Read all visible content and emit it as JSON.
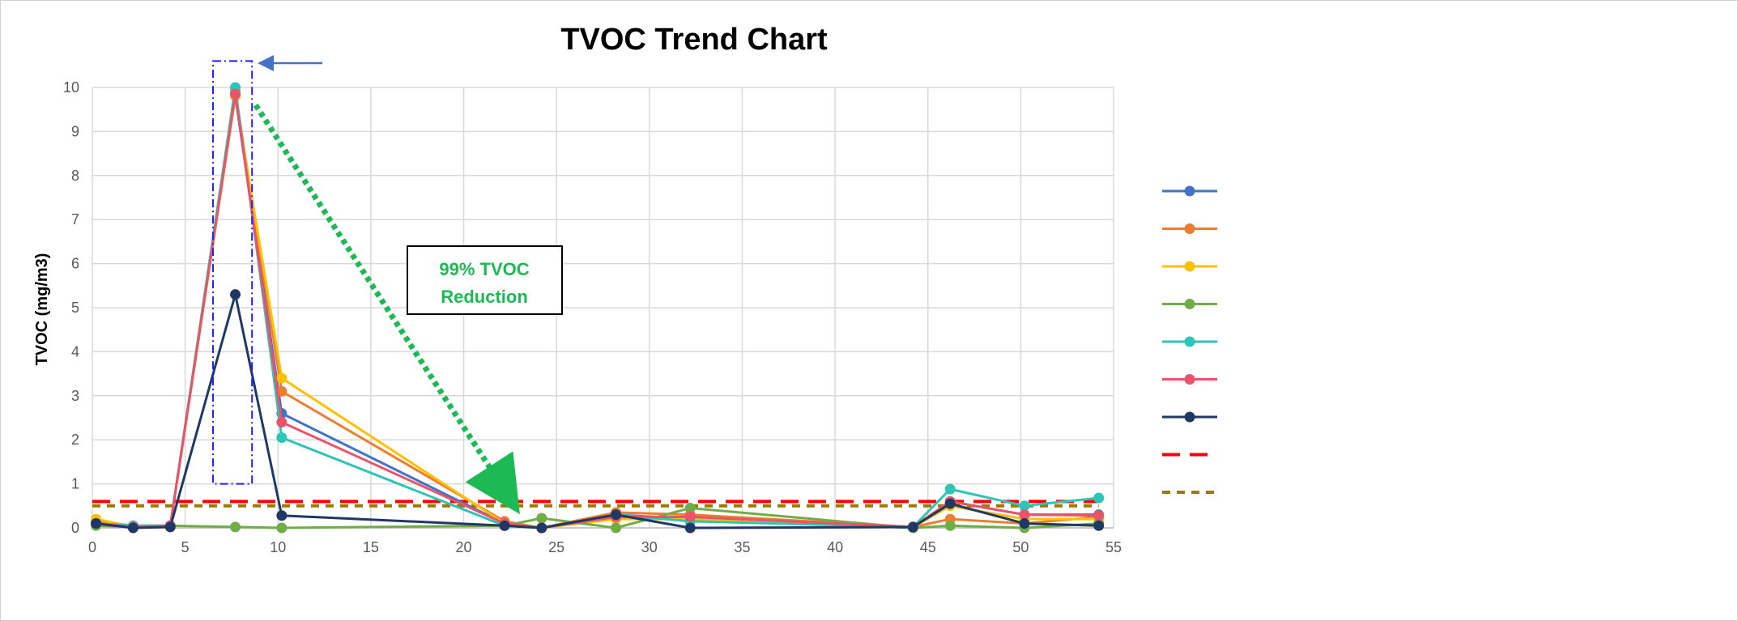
{
  "chart_data": {
    "type": "line",
    "title": "TVOC Trend Chart",
    "ylabel": "TVOC (mg/m3)",
    "xlabel": "",
    "xlim": [
      0,
      55
    ],
    "ylim": [
      0,
      10
    ],
    "xticks": [
      0,
      5,
      10,
      15,
      20,
      25,
      30,
      35,
      40,
      45,
      50,
      55
    ],
    "yticks": [
      0,
      1,
      2,
      3,
      4,
      5,
      6,
      7,
      8,
      9,
      10
    ],
    "grid": true,
    "legend_position": "right",
    "x": [
      0.2,
      2.2,
      4.2,
      7.7,
      10.2,
      22.2,
      24.2,
      28.2,
      32.2,
      44.2,
      46.2,
      50.2,
      54.2
    ],
    "series": [
      {
        "color": "#4472c4",
        "marker": "circle",
        "dash": "solid",
        "values": [
          0.15,
          0.05,
          0.05,
          9.8,
          2.6,
          0.1,
          0.0,
          0.3,
          0.2,
          0.0,
          0.6,
          0.3,
          0.3
        ]
      },
      {
        "color": "#ed7d31",
        "marker": "circle",
        "dash": "solid",
        "values": [
          0.15,
          0.02,
          0.05,
          9.9,
          3.1,
          0.15,
          0.0,
          0.35,
          0.3,
          0.02,
          0.2,
          0.1,
          0.25
        ]
      },
      {
        "color": "#ffc000",
        "marker": "circle",
        "dash": "solid",
        "values": [
          0.2,
          0.03,
          0.05,
          9.8,
          3.4,
          0.1,
          0.0,
          0.2,
          0.2,
          0.02,
          0.5,
          0.2,
          0.2
        ]
      },
      {
        "color": "#70ad47",
        "marker": "circle",
        "dash": "solid",
        "values": [
          0.05,
          0.02,
          0.05,
          0.02,
          0.0,
          0.05,
          0.22,
          0.0,
          0.45,
          0.0,
          0.05,
          0.0,
          0.1
        ]
      },
      {
        "color": "#2ec4b6",
        "marker": "circle",
        "dash": "solid",
        "values": [
          0.1,
          0.05,
          0.05,
          10.0,
          2.05,
          0.05,
          0.0,
          0.3,
          0.15,
          0.02,
          0.88,
          0.5,
          0.68
        ]
      },
      {
        "color": "#e9546b",
        "marker": "circle",
        "dash": "solid",
        "values": [
          0.1,
          0.02,
          0.05,
          9.85,
          2.4,
          0.1,
          0.0,
          0.25,
          0.25,
          0.02,
          0.6,
          0.3,
          0.28
        ]
      },
      {
        "color": "#203864",
        "marker": "circle",
        "dash": "solid",
        "values": [
          0.1,
          0.0,
          0.02,
          5.3,
          0.28,
          0.05,
          0.0,
          0.3,
          0.0,
          0.02,
          0.55,
          0.1,
          0.05
        ]
      }
    ],
    "reference_lines": [
      {
        "color": "#ff0000",
        "dash": "long-dash",
        "y": 0.6
      },
      {
        "color": "#9c7a00",
        "dash": "short-dash",
        "y": 0.5
      }
    ],
    "annotations": {
      "reduction_text": [
        "99% TVOC",
        "Reduction"
      ],
      "reduction_color": "#1db954",
      "highlight_color": "#1f1fff",
      "highlight_x_range": [
        6.5,
        8.6
      ],
      "highlight_y_range": [
        1,
        10.6
      ],
      "arrow_from": [
        8.8,
        9.6
      ],
      "arrow_to": [
        22.2,
        0.85
      ],
      "pointer_arrow_color": "#4472c4"
    }
  }
}
